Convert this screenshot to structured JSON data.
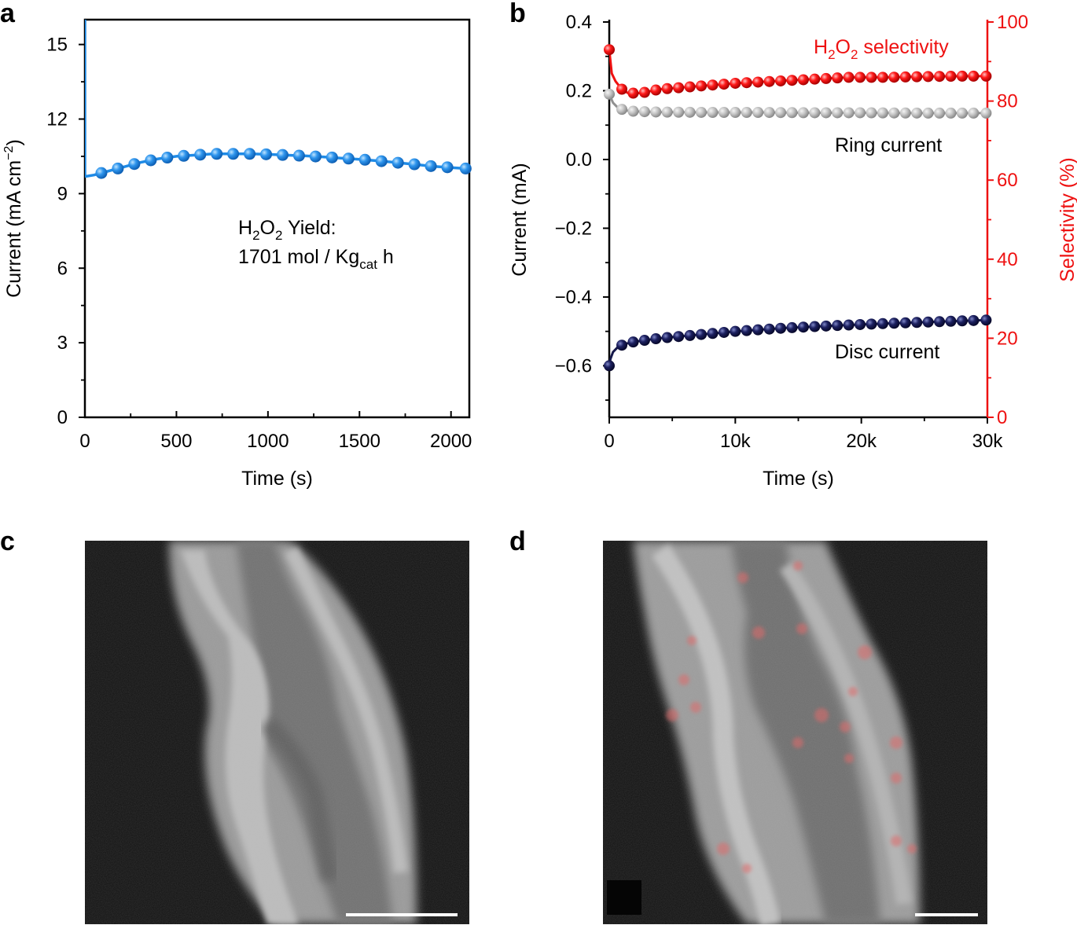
{
  "panel_labels": {
    "a": "a",
    "b": "b",
    "c": "c",
    "d": "d"
  },
  "chart_data": [
    {
      "type": "line",
      "panel": "a",
      "xlabel": "Time (s)",
      "ylabel": "Current (mA cm",
      "ylabel_sup": "−2",
      "ylabel_close": ")",
      "xlim": [
        0,
        2100
      ],
      "ylim": [
        0,
        16
      ],
      "xticks": [
        0,
        500,
        1000,
        1500,
        2000
      ],
      "yticks": [
        0,
        3,
        6,
        9,
        12,
        15
      ],
      "color": "#1f8be6",
      "series": [
        {
          "name": "Current",
          "x": [
            0,
            0,
            10,
            50,
            100,
            150,
            200,
            300,
            400,
            500,
            600,
            700,
            800,
            900,
            1000,
            1100,
            1200,
            1300,
            1400,
            1500,
            1600,
            1700,
            1800,
            1900,
            2000,
            2100
          ],
          "y": [
            16,
            9.7,
            9.7,
            9.75,
            9.85,
            9.95,
            10.05,
            10.25,
            10.4,
            10.5,
            10.55,
            10.6,
            10.6,
            10.6,
            10.58,
            10.55,
            10.52,
            10.48,
            10.43,
            10.38,
            10.32,
            10.25,
            10.18,
            10.1,
            10.05,
            10.0
          ]
        }
      ],
      "markers_x": [
        90,
        180,
        270,
        360,
        450,
        540,
        630,
        720,
        810,
        900,
        990,
        1080,
        1170,
        1260,
        1350,
        1440,
        1530,
        1620,
        1710,
        1800,
        1890,
        1980,
        2080
      ],
      "annotation": {
        "line1_a": "H",
        "line1_sub1": "2",
        "line1_b": "O",
        "line1_sub2": "2",
        "line1_c": " Yield:",
        "line2_a": "1701 mol / Kg",
        "line2_sub": "cat",
        "line2_c": " h"
      }
    },
    {
      "type": "line",
      "panel": "b",
      "xlabel": "Time (s)",
      "ylabel": "Current (mA)",
      "y2label": "Selectivity (%)",
      "xlim": [
        0,
        30000
      ],
      "ylim": [
        -0.75,
        0.4
      ],
      "y2lim": [
        0,
        100
      ],
      "xticks": [
        0,
        10000,
        20000,
        30000
      ],
      "xtick_labels": [
        "0",
        "10k",
        "20k",
        "30k"
      ],
      "yticks": [
        -0.6,
        -0.4,
        -0.2,
        0.0,
        0.2,
        0.4
      ],
      "ytick_labels": [
        "−0.6",
        "−0.4",
        "−0.2",
        "0.0",
        "0.2",
        "0.4"
      ],
      "y2ticks": [
        0,
        20,
        40,
        60,
        80,
        100
      ],
      "series": [
        {
          "name": "H2O2 selectivity",
          "axis": "right",
          "color": "#ee1111",
          "x": [
            0,
            200,
            500,
            1000,
            1500,
            2500,
            4000,
            6000,
            8000,
            10000,
            13000,
            16000,
            19000,
            22000,
            25000,
            28000,
            30000
          ],
          "y": [
            93,
            87,
            85,
            83,
            82,
            82,
            83,
            83.5,
            84,
            84.5,
            85,
            85.5,
            86,
            86,
            86.2,
            86.3,
            86.3
          ],
          "markers_x": [
            0,
            1000,
            1900,
            2800,
            3700,
            4600,
            5500,
            6400,
            7300,
            8200,
            9100,
            10000,
            10900,
            11800,
            12700,
            13600,
            14500,
            15400,
            16300,
            17200,
            18100,
            19000,
            19900,
            20800,
            21700,
            22600,
            23500,
            24400,
            25300,
            26200,
            27100,
            28000,
            28900,
            29900
          ]
        },
        {
          "name": "Ring current",
          "axis": "left",
          "color": "#b4b4b4",
          "linecolor": "#909090",
          "x": [
            0,
            300,
            700,
            1200,
            2000,
            4000,
            8000,
            12000,
            16000,
            20000,
            25000,
            30000
          ],
          "y": [
            0.19,
            0.165,
            0.15,
            0.143,
            0.14,
            0.138,
            0.137,
            0.137,
            0.136,
            0.136,
            0.135,
            0.135
          ],
          "markers_x": [
            0,
            1000,
            1900,
            2800,
            3700,
            4600,
            5500,
            6400,
            7300,
            8200,
            9100,
            10000,
            10900,
            11800,
            12700,
            13600,
            14500,
            15400,
            16300,
            17200,
            18100,
            19000,
            19900,
            20800,
            21700,
            22600,
            23500,
            24400,
            25300,
            26200,
            27100,
            28000,
            28900,
            29900
          ]
        },
        {
          "name": "Disc current",
          "axis": "left",
          "color": "#15184a",
          "x": [
            0,
            100,
            300,
            700,
            1200,
            2000,
            4000,
            7000,
            10000,
            14000,
            18000,
            22000,
            26000,
            30000
          ],
          "y": [
            -0.6,
            -0.58,
            -0.56,
            -0.545,
            -0.537,
            -0.53,
            -0.52,
            -0.51,
            -0.5,
            -0.49,
            -0.483,
            -0.477,
            -0.472,
            -0.467
          ],
          "markers_x": [
            0,
            1000,
            1900,
            2800,
            3700,
            4600,
            5500,
            6400,
            7300,
            8200,
            9100,
            10000,
            10900,
            11800,
            12700,
            13600,
            14500,
            15400,
            16300,
            17200,
            18100,
            19000,
            19900,
            20800,
            21700,
            22600,
            23500,
            24400,
            25300,
            26200,
            27100,
            28000,
            28900,
            29900
          ]
        }
      ],
      "labels": {
        "sel_a": "H",
        "sel_sub1": "2",
        "sel_b": "O",
        "sel_sub2": "2",
        "sel_c": " selectivity",
        "ring": "Ring current",
        "disc": "Disc current"
      }
    }
  ],
  "images": {
    "c": {
      "description_name": "micrograph-c"
    },
    "d": {
      "description_name": "micrograph-d"
    }
  }
}
